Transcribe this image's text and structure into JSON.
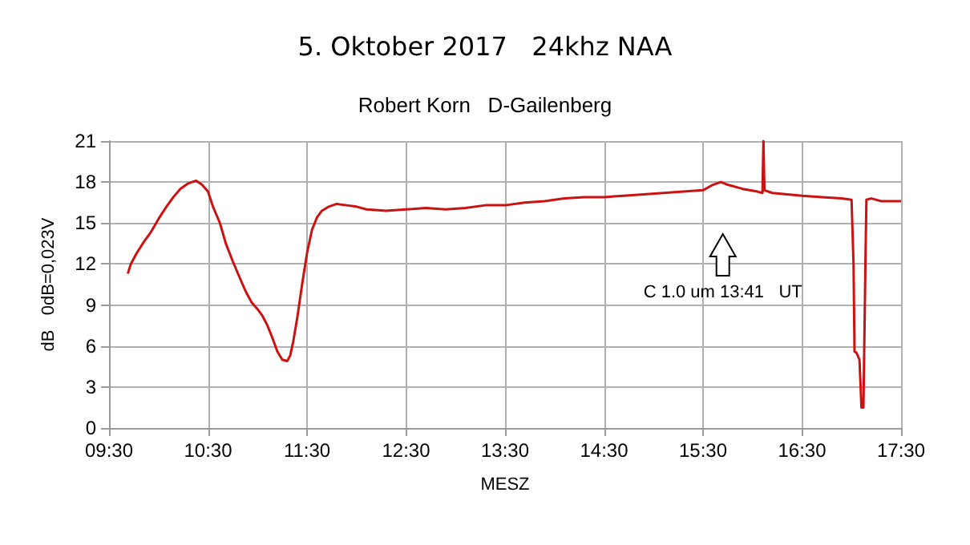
{
  "chart_data": {
    "type": "line",
    "title": "5. Oktober 2017   24khz NAA",
    "subtitle": "Robert Korn   D-Gailenberg",
    "xlabel": "MESZ",
    "ylabel": "dB   0dB=0,023V",
    "annotations": [
      "C 1.0 um 13:41   UT"
    ],
    "xlim": [
      9.5,
      17.5
    ],
    "xticks": [
      {
        "value": 9.5,
        "label": "09:30"
      },
      {
        "value": 10.5,
        "label": "10:30"
      },
      {
        "value": 11.5,
        "label": "11:30"
      },
      {
        "value": 12.5,
        "label": "12:30"
      },
      {
        "value": 13.5,
        "label": "13:30"
      },
      {
        "value": 14.5,
        "label": "14:30"
      },
      {
        "value": 15.5,
        "label": "15:30"
      },
      {
        "value": 16.5,
        "label": "16:30"
      },
      {
        "value": 17.5,
        "label": "17:30"
      }
    ],
    "ylim": [
      0,
      21
    ],
    "yticks": [
      0,
      3,
      6,
      9,
      12,
      15,
      18,
      21
    ],
    "grid": true,
    "marker": "none",
    "line_style": "solid",
    "series": [
      {
        "color": "#cc1111",
        "x": [
          9.69,
          9.72,
          9.78,
          9.85,
          9.92,
          10.0,
          10.08,
          10.15,
          10.22,
          10.3,
          10.38,
          10.44,
          10.5,
          10.55,
          10.62,
          10.68,
          10.75,
          10.82,
          10.88,
          10.94,
          11.0,
          11.05,
          11.1,
          11.15,
          11.2,
          11.25,
          11.3,
          11.33,
          11.36,
          11.4,
          11.45,
          11.5,
          11.55,
          11.6,
          11.65,
          11.72,
          11.8,
          11.9,
          12.0,
          12.1,
          12.3,
          12.5,
          12.7,
          12.9,
          13.1,
          13.3,
          13.5,
          13.7,
          13.9,
          14.1,
          14.3,
          14.5,
          14.7,
          14.9,
          15.1,
          15.3,
          15.5,
          15.6,
          15.68,
          15.75,
          15.9,
          16.05,
          16.1,
          16.11,
          16.12,
          16.2,
          16.35,
          16.5,
          16.7,
          16.9,
          17.0,
          17.02,
          17.03,
          17.05,
          17.08,
          17.1,
          17.12,
          17.14,
          17.15,
          17.2,
          17.3,
          17.4,
          17.5
        ],
        "values": [
          11.3,
          12.0,
          12.8,
          13.6,
          14.3,
          15.3,
          16.2,
          16.9,
          17.5,
          17.9,
          18.1,
          17.8,
          17.3,
          16.2,
          15.0,
          13.5,
          12.2,
          11.0,
          10.0,
          9.2,
          8.7,
          8.2,
          7.5,
          6.6,
          5.6,
          5.0,
          4.9,
          5.3,
          6.3,
          8.0,
          10.5,
          12.8,
          14.5,
          15.4,
          15.9,
          16.2,
          16.4,
          16.3,
          16.2,
          16.0,
          15.9,
          16.0,
          16.1,
          16.0,
          16.1,
          16.3,
          16.3,
          16.5,
          16.6,
          16.8,
          16.9,
          16.9,
          17.0,
          17.1,
          17.2,
          17.3,
          17.4,
          17.8,
          18.0,
          17.8,
          17.5,
          17.3,
          17.2,
          21,
          17.4,
          17.2,
          17.1,
          17.0,
          16.9,
          16.8,
          16.7,
          12.0,
          5.6,
          5.5,
          5.0,
          1.5,
          1.5,
          12.0,
          16.7,
          16.8,
          16.6,
          16.6,
          16.6
        ]
      }
    ]
  }
}
